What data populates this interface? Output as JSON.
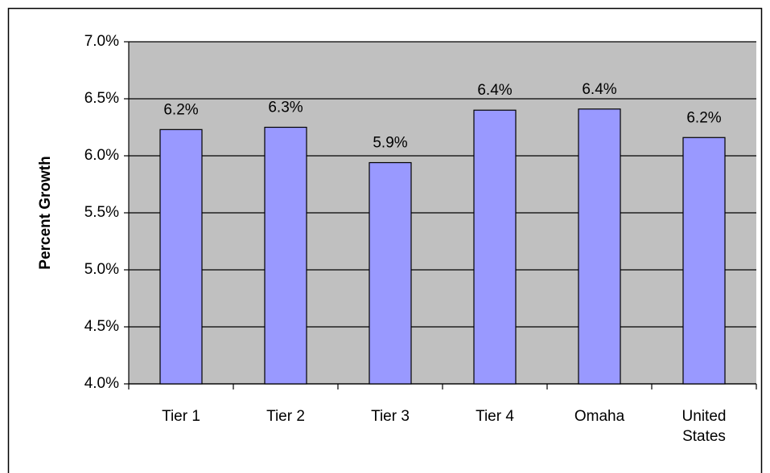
{
  "chart_data": {
    "type": "bar",
    "y_label": "Percent Growth",
    "categories": [
      "Tier 1",
      "Tier 2",
      "Tier 3",
      "Tier 4",
      "Omaha",
      "United States"
    ],
    "values": [
      6.23,
      6.25,
      5.94,
      6.4,
      6.41,
      6.16
    ],
    "value_labels": [
      "6.2%",
      "6.3%",
      "5.9%",
      "6.4%",
      "6.4%",
      "6.2%"
    ],
    "color": "#9999ff",
    "background": "#c0c0c0",
    "ylim": [
      4,
      7
    ],
    "yticks": [
      {
        "value": 4,
        "label": "4.0%"
      },
      {
        "value": 4.5,
        "label": "4.5%"
      },
      {
        "value": 5,
        "label": "5.0%"
      },
      {
        "value": 5.5,
        "label": "5.5%"
      },
      {
        "value": 6,
        "label": "6.0%"
      },
      {
        "value": 6.5,
        "label": "6.5%"
      },
      {
        "value": 7,
        "label": "7.0%"
      }
    ],
    "grid": true
  }
}
